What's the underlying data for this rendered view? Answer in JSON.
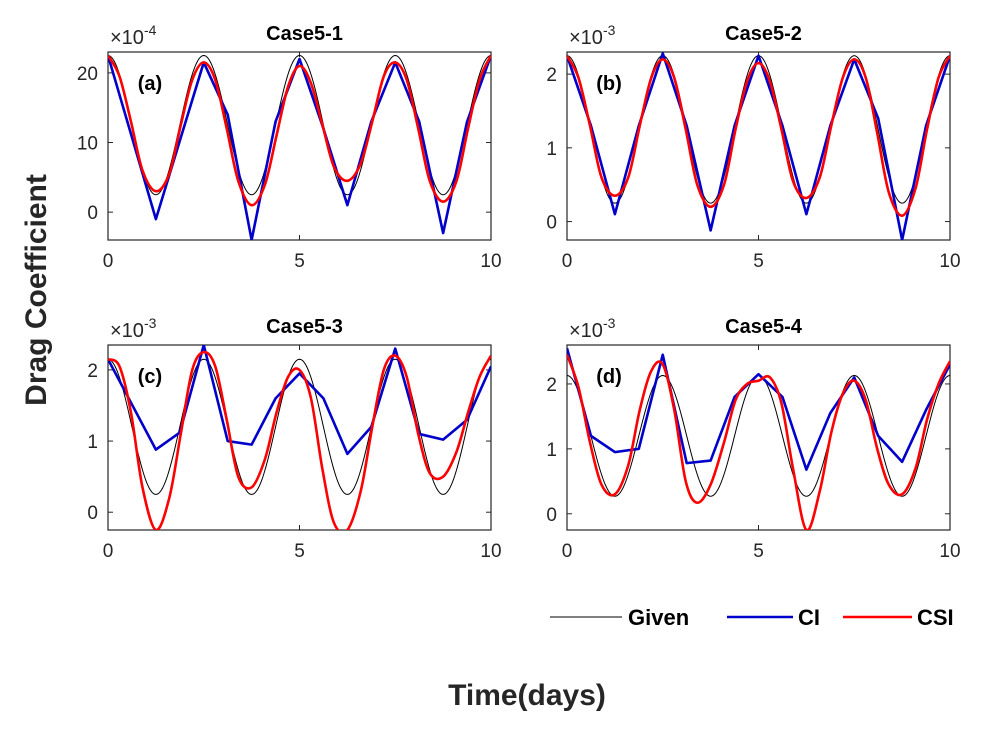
{
  "figure": {
    "ylabel": "Drag Coefficient",
    "xlabel": "Time(days)"
  },
  "legend": [
    {
      "name": "Given",
      "color": "#000000"
    },
    {
      "name": "CI",
      "color": "#0000cc"
    },
    {
      "name": "CSI",
      "color": "#ff0000"
    }
  ],
  "colors": {
    "given": "#000000",
    "ci": "#0000cc",
    "csi": "#ff0000"
  },
  "chart_data": [
    {
      "type": "line",
      "title": "Case5-1",
      "tag": "(a)",
      "exponent": "-4",
      "exponent_prefix": "×10",
      "xlabel": "",
      "ylabel": "",
      "xlim": [
        0,
        10
      ],
      "ylim": [
        -4,
        23
      ],
      "xticks": [
        0,
        5,
        10
      ],
      "yticks": [
        0,
        10,
        20
      ],
      "given_curve": {
        "center": 12.5,
        "amplitude": 10,
        "period": 2.5,
        "min_scale": 1
      },
      "series": [
        {
          "name": "Given",
          "x": [],
          "values": []
        },
        {
          "name": "CI",
          "x": [
            0,
            1.25,
            2.5,
            3.125,
            3.75,
            4.375,
            5,
            5.625,
            6.25,
            6.875,
            7.5,
            8.125,
            8.75,
            9.375,
            10
          ],
          "values": [
            22.5,
            -1,
            21.5,
            14,
            -4,
            13,
            22,
            12,
            1,
            13,
            21.5,
            13,
            -3,
            13,
            22.5
          ]
        },
        {
          "name": "CSI",
          "x": [
            0,
            0.3,
            0.6,
            0.9,
            1.25,
            1.6,
            1.9,
            2.2,
            2.5,
            2.8,
            3.1,
            3.4,
            3.75,
            4.1,
            4.4,
            4.7,
            5,
            5.3,
            5.6,
            5.9,
            6.25,
            6.6,
            6.9,
            7.2,
            7.5,
            7.8,
            8.1,
            8.4,
            8.75,
            9.1,
            9.4,
            9.7,
            10
          ],
          "values": [
            22.5,
            19.5,
            13,
            6,
            3,
            5.5,
            12.5,
            19,
            21.5,
            19,
            12,
            4.5,
            1,
            4,
            11,
            18,
            21,
            18.5,
            12.5,
            6.5,
            4.5,
            7,
            13,
            19.5,
            21.5,
            19,
            12,
            4.5,
            1.5,
            4.5,
            12,
            19,
            22.5
          ]
        }
      ]
    },
    {
      "type": "line",
      "title": "Case5-2",
      "tag": "(b)",
      "exponent": "-3",
      "exponent_prefix": "×10",
      "xlabel": "",
      "ylabel": "",
      "xlim": [
        0,
        10
      ],
      "ylim": [
        -0.25,
        2.3
      ],
      "xticks": [
        0,
        5,
        10
      ],
      "yticks": [
        0,
        1,
        2
      ],
      "given_curve": {
        "center": 1.25,
        "amplitude": 1.0,
        "period": 2.5,
        "min_scale": 1
      },
      "series": [
        {
          "name": "Given",
          "x": [],
          "values": []
        },
        {
          "name": "CI",
          "x": [
            0,
            0.625,
            1.25,
            1.875,
            2.5,
            3.125,
            3.75,
            4.375,
            5,
            5.625,
            6.25,
            6.875,
            7.5,
            8.125,
            8.75,
            9.375,
            10
          ],
          "values": [
            2.25,
            1.3,
            0.1,
            1.3,
            2.28,
            1.3,
            -0.12,
            1.3,
            2.25,
            1.3,
            0.1,
            1.3,
            2.2,
            1.4,
            -0.25,
            1.3,
            2.25
          ]
        },
        {
          "name": "CSI",
          "x": [
            0,
            0.3,
            0.6,
            0.9,
            1.25,
            1.6,
            1.9,
            2.2,
            2.5,
            2.8,
            3.1,
            3.4,
            3.75,
            4.1,
            4.4,
            4.7,
            5,
            5.3,
            5.6,
            5.9,
            6.25,
            6.6,
            6.9,
            7.2,
            7.5,
            7.8,
            8.1,
            8.4,
            8.75,
            9.1,
            9.4,
            9.7,
            10
          ],
          "values": [
            2.25,
            1.95,
            1.3,
            0.6,
            0.35,
            0.6,
            1.3,
            1.95,
            2.2,
            1.95,
            1.25,
            0.5,
            0.2,
            0.5,
            1.25,
            1.9,
            2.15,
            1.9,
            1.25,
            0.55,
            0.32,
            0.6,
            1.3,
            1.95,
            2.2,
            1.95,
            1.2,
            0.4,
            0.08,
            0.45,
            1.25,
            1.95,
            2.25
          ]
        }
      ]
    },
    {
      "type": "line",
      "title": "Case5-3",
      "tag": "(c)",
      "exponent": "-3",
      "exponent_prefix": "×10",
      "xlabel": "",
      "ylabel": "",
      "xlim": [
        0,
        10
      ],
      "ylim": [
        -0.25,
        2.35
      ],
      "xticks": [
        0,
        5,
        10
      ],
      "yticks": [
        0,
        1,
        2
      ],
      "given_curve": {
        "center": 1.2,
        "amplitude": 0.95,
        "period": 2.5,
        "min_scale": 1
      },
      "series": [
        {
          "name": "Given",
          "x": [],
          "values": []
        },
        {
          "name": "CI",
          "x": [
            0,
            1.25,
            1.875,
            2.5,
            3.125,
            3.75,
            4.375,
            5,
            5.625,
            6.25,
            6.875,
            7.5,
            8.125,
            8.75,
            9.375,
            10
          ],
          "values": [
            2.15,
            0.88,
            1.12,
            2.35,
            1.0,
            0.95,
            1.6,
            1.95,
            1.6,
            0.82,
            1.2,
            2.3,
            1.1,
            1.02,
            1.3,
            2.05
          ]
        },
        {
          "name": "CSI",
          "x": [
            0,
            0.3,
            0.6,
            0.9,
            1.25,
            1.6,
            1.9,
            2.2,
            2.5,
            2.8,
            3.1,
            3.4,
            3.75,
            4.1,
            4.4,
            4.7,
            5,
            5.3,
            5.6,
            5.9,
            6.25,
            6.6,
            6.9,
            7.2,
            7.5,
            7.8,
            8.1,
            8.4,
            8.75,
            9.1,
            9.4,
            9.7,
            10
          ],
          "values": [
            2.15,
            2.05,
            1.4,
            0.35,
            -0.25,
            0.2,
            1.1,
            2.0,
            2.25,
            2.05,
            1.3,
            0.5,
            0.35,
            0.75,
            1.4,
            1.9,
            2.0,
            1.6,
            0.6,
            -0.15,
            -0.25,
            0.3,
            1.2,
            2.0,
            2.2,
            1.9,
            1.1,
            0.55,
            0.5,
            0.85,
            1.4,
            1.9,
            2.2
          ]
        }
      ]
    },
    {
      "type": "line",
      "title": "Case5-4",
      "tag": "(d)",
      "exponent": "-3",
      "exponent_prefix": "×10",
      "xlabel": "",
      "ylabel": "",
      "xlim": [
        0,
        10
      ],
      "ylim": [
        -0.25,
        2.6
      ],
      "xticks": [
        0,
        5,
        10
      ],
      "yticks": [
        0,
        1,
        2
      ],
      "given_curve": {
        "center": 1.2,
        "amplitude": 0.93,
        "period": 2.5,
        "min_scale": 1
      },
      "series": [
        {
          "name": "Given",
          "x": [],
          "values": []
        },
        {
          "name": "CI",
          "x": [
            0,
            0.625,
            1.25,
            1.875,
            2.5,
            3.125,
            3.75,
            4.375,
            5,
            5.625,
            6.25,
            6.875,
            7.5,
            8.125,
            8.75,
            9.375,
            10
          ],
          "values": [
            2.55,
            1.2,
            0.95,
            1.0,
            2.45,
            0.78,
            0.82,
            1.8,
            2.15,
            1.8,
            0.68,
            1.55,
            2.1,
            1.2,
            0.8,
            1.6,
            2.3
          ]
        },
        {
          "name": "CSI",
          "x": [
            0,
            0.3,
            0.6,
            0.9,
            1.25,
            1.6,
            1.9,
            2.2,
            2.5,
            2.8,
            3.1,
            3.4,
            3.75,
            4.1,
            4.4,
            4.7,
            5,
            5.3,
            5.6,
            5.9,
            6.25,
            6.6,
            6.9,
            7.2,
            7.5,
            7.8,
            8.1,
            8.4,
            8.75,
            9.1,
            9.4,
            9.7,
            10
          ],
          "values": [
            2.45,
            1.95,
            1.1,
            0.45,
            0.3,
            0.75,
            1.6,
            2.2,
            2.3,
            1.6,
            0.5,
            0.17,
            0.45,
            1.1,
            1.75,
            2.0,
            2.05,
            2.1,
            1.7,
            0.7,
            -0.25,
            0.35,
            1.25,
            1.85,
            2.05,
            1.75,
            1.0,
            0.45,
            0.3,
            0.7,
            1.45,
            2.0,
            2.35
          ]
        }
      ]
    }
  ]
}
